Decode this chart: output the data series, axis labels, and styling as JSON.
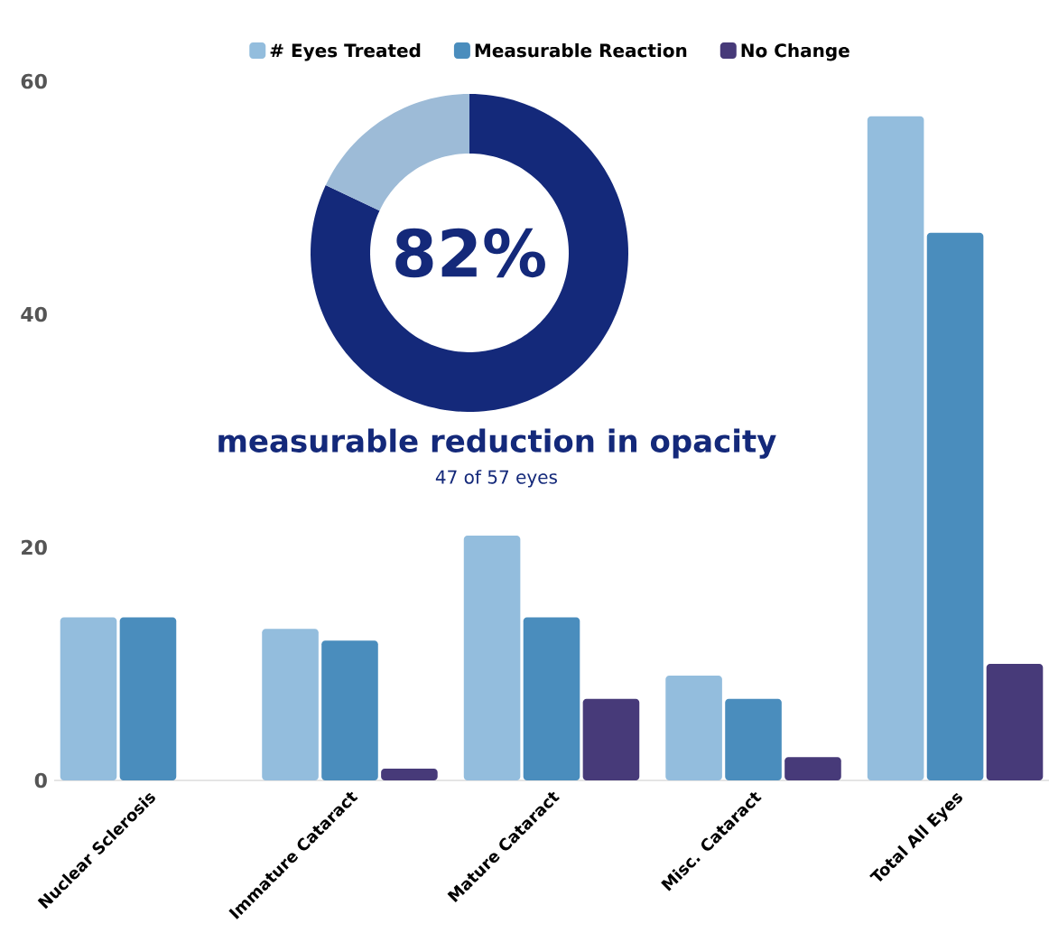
{
  "chart_data": [
    {
      "type": "bar",
      "categories": [
        "Nuclear Sclerosis",
        "Immature Cataract",
        "Mature Cataract",
        "Misc. Cataract",
        "Total All Eyes"
      ],
      "series": [
        {
          "name": "# Eyes Treated",
          "color": "#93bddd",
          "values": [
            14,
            13,
            21,
            9,
            57
          ]
        },
        {
          "name": "Measurable Reaction",
          "color": "#4a8dbd",
          "values": [
            14,
            12,
            14,
            7,
            47
          ]
        },
        {
          "name": "No Change",
          "color": "#473a79",
          "values": [
            null,
            1,
            7,
            2,
            10
          ]
        }
      ],
      "ylim": [
        0,
        60
      ],
      "yticks": [
        0,
        20,
        40,
        60
      ],
      "legend": "top"
    },
    {
      "type": "donut",
      "title": "measurable reduction in opacity",
      "subtitle": "47 of 57 eyes",
      "categories": [
        null,
        null
      ],
      "values": [
        82,
        18
      ],
      "colors": [
        "#14297a",
        "#9dbbd7"
      ],
      "value_labels": [
        "82%",
        null
      ]
    }
  ]
}
